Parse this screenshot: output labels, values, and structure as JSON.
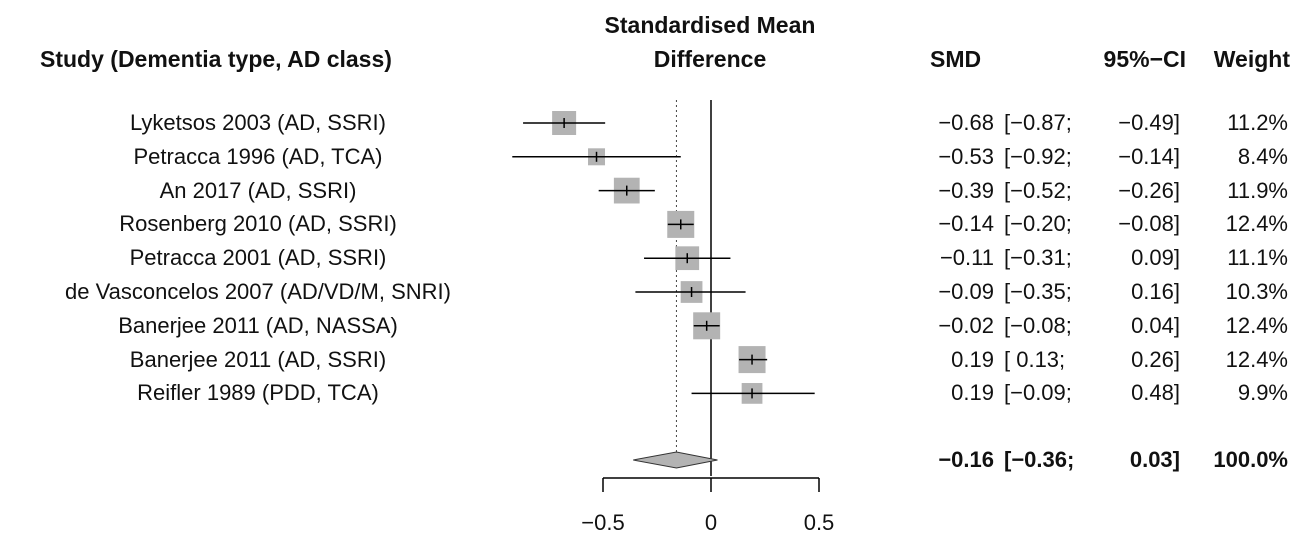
{
  "chart_data": {
    "type": "forest",
    "headers": {
      "study": "Study (Dementia type, AD class)",
      "effect_line1": "Standardised Mean",
      "effect_line2": "Difference",
      "smd": "SMD",
      "ci": "95%−CI",
      "weight": "Weight"
    },
    "studies": [
      {
        "label": "Lyketsos 2003 (AD, SSRI)",
        "smd": -0.68,
        "lower": -0.87,
        "upper": -0.49,
        "weight": 11.2,
        "smd_text": "−0.68",
        "ci_low_text": "[−0.87;",
        "ci_high_text": "−0.49]",
        "weight_text": "11.2%"
      },
      {
        "label": "Petracca 1996 (AD, TCA)",
        "smd": -0.53,
        "lower": -0.92,
        "upper": -0.14,
        "weight": 8.4,
        "smd_text": "−0.53",
        "ci_low_text": "[−0.92;",
        "ci_high_text": "−0.14]",
        "weight_text": "8.4%"
      },
      {
        "label": "An 2017 (AD, SSRI)",
        "smd": -0.39,
        "lower": -0.52,
        "upper": -0.26,
        "weight": 11.9,
        "smd_text": "−0.39",
        "ci_low_text": "[−0.52;",
        "ci_high_text": "−0.26]",
        "weight_text": "11.9%"
      },
      {
        "label": "Rosenberg 2010 (AD, SSRI)",
        "smd": -0.14,
        "lower": -0.2,
        "upper": -0.08,
        "weight": 12.4,
        "smd_text": "−0.14",
        "ci_low_text": "[−0.20;",
        "ci_high_text": "−0.08]",
        "weight_text": "12.4%"
      },
      {
        "label": "Petracca 2001 (AD, SSRI)",
        "smd": -0.11,
        "lower": -0.31,
        "upper": 0.09,
        "weight": 11.1,
        "smd_text": "−0.11",
        "ci_low_text": "[−0.31;",
        "ci_high_text": "0.09]",
        "weight_text": "11.1%"
      },
      {
        "label": "de Vasconcelos 2007 (AD/VD/M, SNRI)",
        "smd": -0.09,
        "lower": -0.35,
        "upper": 0.16,
        "weight": 10.3,
        "smd_text": "−0.09",
        "ci_low_text": "[−0.35;",
        "ci_high_text": "0.16]",
        "weight_text": "10.3%"
      },
      {
        "label": "Banerjee 2011 (AD, NASSA)",
        "smd": -0.02,
        "lower": -0.08,
        "upper": 0.04,
        "weight": 12.4,
        "smd_text": "−0.02",
        "ci_low_text": "[−0.08;",
        "ci_high_text": "0.04]",
        "weight_text": "12.4%"
      },
      {
        "label": "Banerjee 2011 (AD, SSRI)",
        "smd": 0.19,
        "lower": 0.13,
        "upper": 0.26,
        "weight": 12.4,
        "smd_text": "0.19",
        "ci_low_text": "[ 0.13;",
        "ci_high_text": "0.26]",
        "weight_text": "12.4%"
      },
      {
        "label": "Reifler 1989 (PDD, TCA)",
        "smd": 0.19,
        "lower": -0.09,
        "upper": 0.48,
        "weight": 9.9,
        "smd_text": "0.19",
        "ci_low_text": "[−0.09;",
        "ci_high_text": "0.48]",
        "weight_text": "9.9%"
      }
    ],
    "pooled": {
      "smd": -0.16,
      "lower": -0.36,
      "upper": 0.03,
      "weight": 100.0,
      "smd_text": "−0.16",
      "ci_low_text": "[−0.36;",
      "ci_high_text": "0.03]",
      "weight_text": "100.0%"
    },
    "x_axis": {
      "ticks": [
        -0.5,
        0,
        0.5
      ],
      "tick_labels": [
        "−0.5",
        "0",
        "0.5"
      ],
      "xlim": [
        -0.5,
        0.5
      ]
    },
    "reference_line": 0,
    "pooled_line": -0.16,
    "colors": {
      "square": "#b3b3b3",
      "diamond": "#b3b3b3",
      "line": "#000000"
    }
  }
}
